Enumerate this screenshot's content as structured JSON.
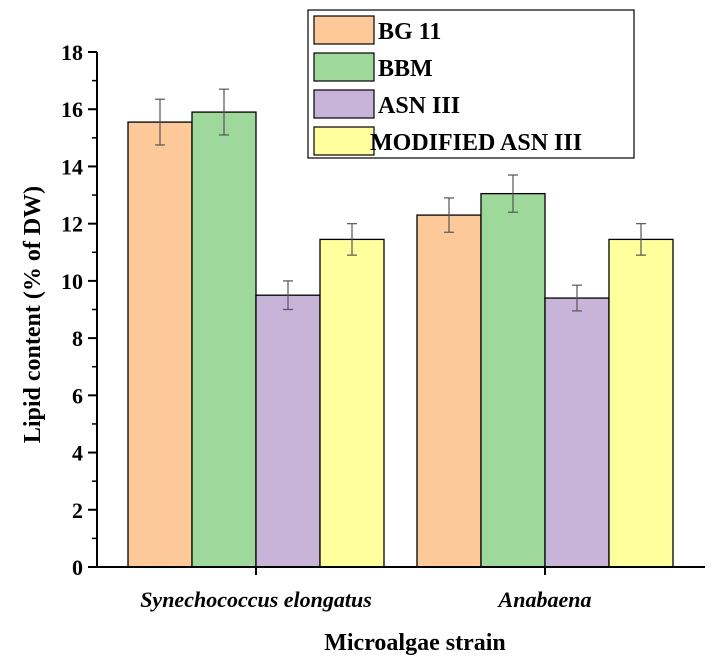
{
  "chart_data": {
    "type": "bar",
    "xlabel": "Microalgae strain",
    "ylabel": "Lipid content (% of DW)",
    "ylim": [
      0,
      18
    ],
    "yticks": [
      0,
      2,
      4,
      6,
      8,
      10,
      12,
      14,
      16,
      18
    ],
    "categories": [
      "Synechococcus elongatus",
      "Anabaena"
    ],
    "series": [
      {
        "name": "BG 11",
        "color": "#FDC998",
        "values": [
          15.55,
          12.3
        ],
        "errors": [
          0.8,
          0.6
        ]
      },
      {
        "name": "BBM",
        "color": "#9ED89A",
        "values": [
          15.9,
          13.05
        ],
        "errors": [
          0.8,
          0.65
        ]
      },
      {
        "name": "ASN III",
        "color": "#C8B4D9",
        "values": [
          9.5,
          9.4
        ],
        "errors": [
          0.5,
          0.45
        ]
      },
      {
        "name": "MODIFIED ASN III",
        "color": "#FFFF9E",
        "values": [
          11.45,
          11.45
        ],
        "errors": [
          0.55,
          0.55
        ]
      }
    ],
    "legend_position": "top-right",
    "grid": false
  }
}
